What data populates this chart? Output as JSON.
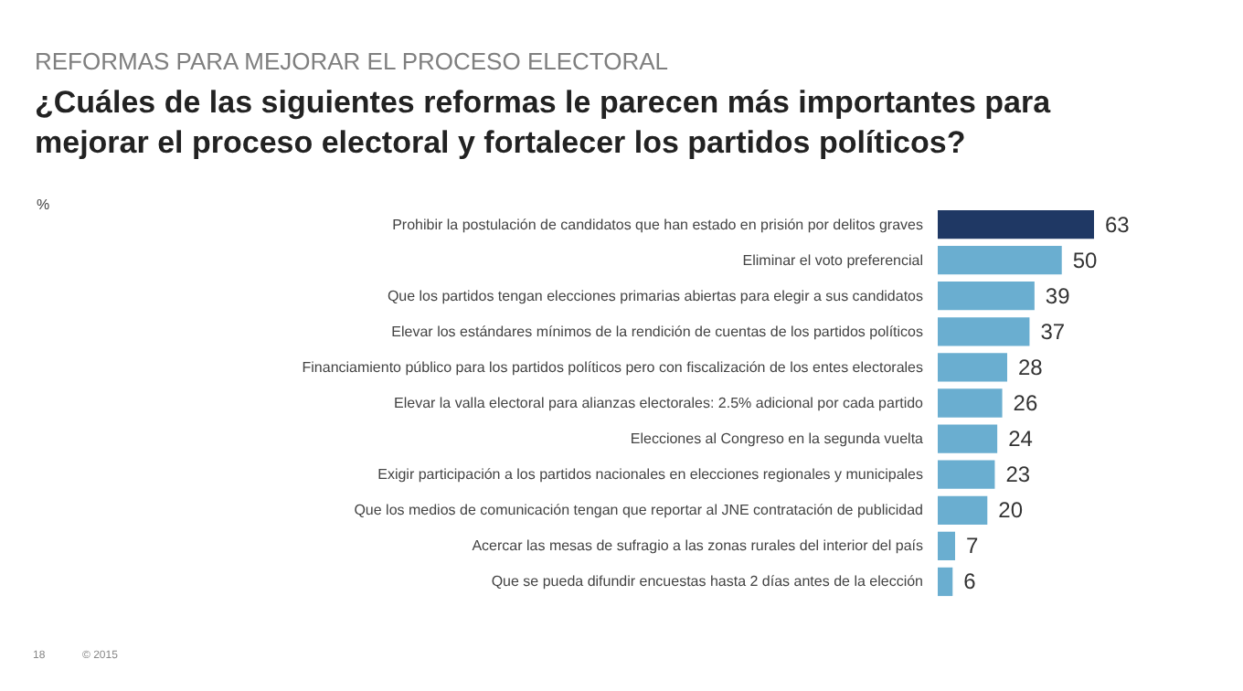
{
  "chart_data": {
    "type": "bar",
    "orientation": "horizontal",
    "subtitle": "REFORMAS PARA MEJORAR EL PROCESO ELECTORAL",
    "title": "¿Cuáles de las siguientes reformas le parecen más importantes para mejorar el proceso electoral y fortalecer los partidos políticos?",
    "categories": [
      "Prohibir la postulación de candidatos que han estado en prisión por delitos graves",
      "Eliminar el voto preferencial",
      "Que los partidos tengan elecciones primarias abiertas para elegir a sus candidatos",
      "Elevar los estándares mínimos de la rendición de cuentas de los partidos políticos",
      "Financiamiento público para los partidos políticos pero con fiscalización de los entes electorales",
      "Elevar la valla electoral para alianzas electorales: 2.5% adicional por cada partido",
      "Elecciones al Congreso en la segunda vuelta",
      "Exigir participación a los partidos nacionales en elecciones regionales y municipales",
      "Que los medios de comunicación tengan que reportar al JNE contratación de publicidad",
      "Acercar las mesas de sufragio a las zonas rurales del interior del país",
      "Que se pueda difundir encuestas hasta 2 días antes de la elección"
    ],
    "values": [
      63,
      50,
      39,
      37,
      28,
      26,
      24,
      23,
      20,
      7,
      6
    ],
    "colors": [
      "#1f3864",
      "#6aaed0",
      "#6aaed0",
      "#6aaed0",
      "#6aaed0",
      "#6aaed0",
      "#6aaed0",
      "#6aaed0",
      "#6aaed0",
      "#6aaed0",
      "#6aaed0"
    ],
    "data_labels": true,
    "annotations": [
      "%",
      "18",
      "© 2015"
    ]
  }
}
